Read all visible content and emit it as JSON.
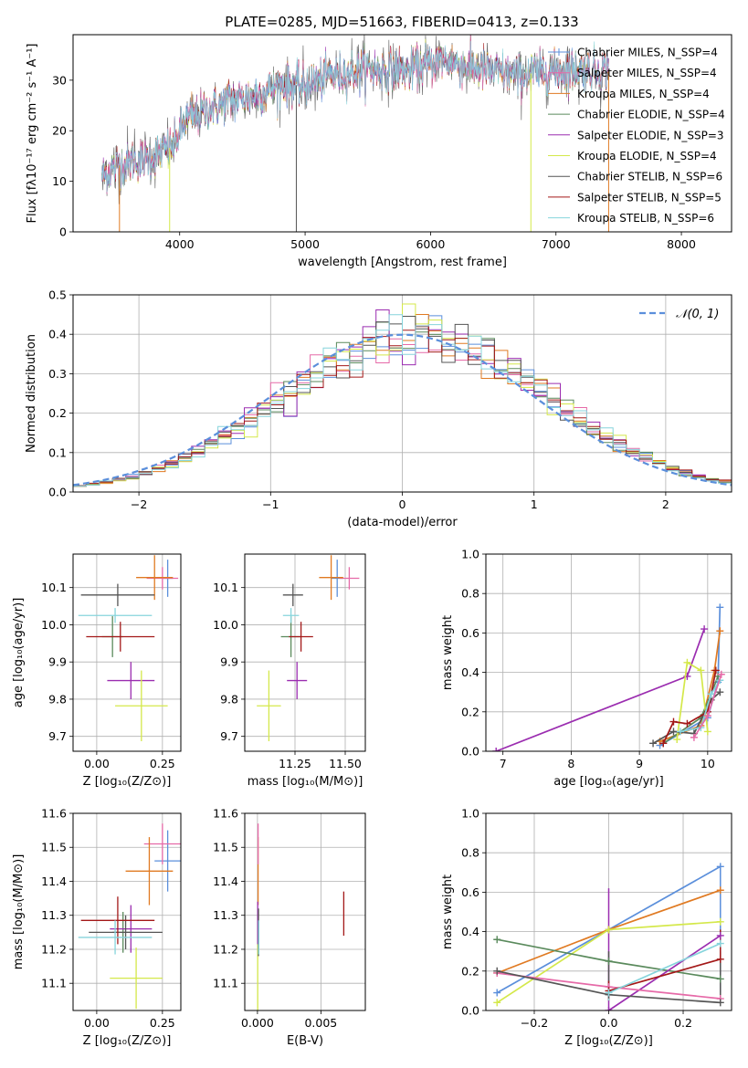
{
  "figure": {
    "title": "PLATE=0285, MJD=51663, FIBERID=0413, z=0.133"
  },
  "colors": {
    "chabrier_miles": "#5b8fdb",
    "salpeter_miles": "#e66aa8",
    "kroupa_miles": "#e07a22",
    "chabrier_elodie": "#5a8a5c",
    "salpeter_elodie": "#9b2db0",
    "kroupa_elodie": "#d4e84a",
    "chabrier_stelib": "#555555",
    "salpeter_stelib": "#a31818",
    "kroupa_stelib": "#86d4dc",
    "normal": "#5b8fdb",
    "grid": "#b0b0b0"
  },
  "chart_data": [
    {
      "id": "spectrum",
      "type": "line",
      "xlabel": "wavelength [Angstrom, rest frame]",
      "ylabel": "Flux [fλ10⁻¹⁷ erg cm⁻² s⁻¹ A⁻¹]",
      "xlim": [
        3150,
        8400
      ],
      "ylim": [
        0,
        39
      ],
      "xticks": [
        "4000",
        "5000",
        "6000",
        "7000",
        "8000"
      ],
      "yticks": [
        "0",
        "10",
        "20",
        "30"
      ],
      "legend": [
        {
          "key": "chabrier_miles",
          "label": "Chabrier MILES, N_SSP=4"
        },
        {
          "key": "salpeter_miles",
          "label": "Salpeter MILES, N_SSP=4"
        },
        {
          "key": "kroupa_miles",
          "label": "Kroupa MILES, N_SSP=4"
        },
        {
          "key": "chabrier_elodie",
          "label": "Chabrier ELODIE, N_SSP=4"
        },
        {
          "key": "salpeter_elodie",
          "label": "Salpeter ELODIE, N_SSP=3"
        },
        {
          "key": "kroupa_elodie",
          "label": "Kroupa ELODIE, N_SSP=4"
        },
        {
          "key": "chabrier_stelib",
          "label": "Chabrier STELIB, N_SSP=6"
        },
        {
          "key": "salpeter_stelib",
          "label": "Salpeter STELIB, N_SSP=5"
        },
        {
          "key": "kroupa_stelib",
          "label": "Kroupa STELIB, N_SSP=6"
        }
      ],
      "continuum": {
        "x": [
          3380,
          3500,
          3650,
          3800,
          3950,
          4050,
          4200,
          4400,
          4600,
          4800,
          5000,
          5200,
          5500,
          5800,
          6100,
          6400,
          6700,
          7000,
          7200,
          7420
        ],
        "y": [
          11,
          13,
          14,
          15,
          17,
          22,
          24,
          26,
          27,
          29,
          29,
          31,
          32,
          32,
          34,
          32,
          31,
          32,
          32,
          32
        ]
      },
      "spikes": [
        {
          "x": 3520,
          "y": 0
        },
        {
          "x": 3920,
          "y": 0
        },
        {
          "x": 4930,
          "y": 0
        },
        {
          "x": 6800,
          "y": 0
        },
        {
          "x": 7420,
          "y": 0
        }
      ]
    },
    {
      "id": "residuals",
      "type": "bar",
      "xlabel": "(data-model)/error",
      "ylabel": "Normed distribution",
      "xlim": [
        -2.5,
        2.5
      ],
      "ylim": [
        0,
        0.5
      ],
      "xticks": [
        "−2",
        "−1",
        "0",
        "1",
        "2"
      ],
      "yticks": [
        "0.0",
        "0.1",
        "0.2",
        "0.3",
        "0.4",
        "0.5"
      ],
      "bin_width": 0.1,
      "legend": [
        {
          "key": "normal",
          "label": "𝒩(0, 1)"
        }
      ]
    },
    {
      "id": "age_vs_Z",
      "type": "scatter",
      "xlabel": "Z [log₁₀(Z/Z⊙)]",
      "ylabel": "age  [log₁₀(age/yr)]",
      "xlim": [
        -0.09,
        0.32
      ],
      "ylim": [
        9.66,
        10.19
      ],
      "xticks": [
        "0.00",
        "0.25"
      ],
      "yticks": [
        "9.7",
        "9.8",
        "9.9",
        "10.0",
        "10.1"
      ],
      "points": [
        {
          "key": "chabrier_miles",
          "x": 0.27,
          "y": 10.125,
          "xerr": 0.02,
          "yerr": 0.05
        },
        {
          "key": "salpeter_miles",
          "x": 0.25,
          "y": 10.125,
          "xerr": 0.06,
          "yerr": 0.03
        },
        {
          "key": "kroupa_miles",
          "x": 0.22,
          "y": 10.127,
          "xerr": 0.07,
          "yerr": 0.06
        },
        {
          "key": "chabrier_elodie",
          "x": 0.06,
          "y": 9.968,
          "xerr": 0.04,
          "yerr": 0.055
        },
        {
          "key": "salpeter_elodie",
          "x": 0.13,
          "y": 9.85,
          "xerr": 0.09,
          "yerr": 0.05
        },
        {
          "key": "kroupa_elodie",
          "x": 0.17,
          "y": 9.782,
          "xerr": 0.1,
          "yerr": 0.095
        },
        {
          "key": "chabrier_stelib",
          "x": 0.08,
          "y": 10.08,
          "xerr": 0.14,
          "yerr": 0.03
        },
        {
          "key": "salpeter_stelib",
          "x": 0.09,
          "y": 9.968,
          "xerr": 0.13,
          "yerr": 0.04
        },
        {
          "key": "kroupa_stelib",
          "x": 0.07,
          "y": 10.025,
          "xerr": 0.14,
          "yerr": 0.02
        }
      ]
    },
    {
      "id": "age_vs_mass",
      "type": "scatter",
      "xlabel": "mass [log₁₀(M/M⊙)]",
      "ylabel": "",
      "xlim": [
        11.0,
        11.6
      ],
      "ylim": [
        9.66,
        10.19
      ],
      "xticks": [
        "11.25",
        "11.50"
      ],
      "yticks": [
        "9.7",
        "9.8",
        "9.9",
        "10.0",
        "10.1"
      ],
      "points": [
        {
          "key": "chabrier_miles",
          "x": 11.46,
          "y": 10.125,
          "xerr": 0.03,
          "yerr": 0.05
        },
        {
          "key": "salpeter_miles",
          "x": 11.52,
          "y": 10.125,
          "xerr": 0.05,
          "yerr": 0.03
        },
        {
          "key": "kroupa_miles",
          "x": 11.43,
          "y": 10.127,
          "xerr": 0.06,
          "yerr": 0.06
        },
        {
          "key": "chabrier_elodie",
          "x": 11.23,
          "y": 9.968,
          "xerr": 0.05,
          "yerr": 0.055
        },
        {
          "key": "salpeter_elodie",
          "x": 11.26,
          "y": 9.85,
          "xerr": 0.05,
          "yerr": 0.05
        },
        {
          "key": "kroupa_elodie",
          "x": 11.12,
          "y": 9.782,
          "xerr": 0.06,
          "yerr": 0.095
        },
        {
          "key": "chabrier_stelib",
          "x": 11.24,
          "y": 10.08,
          "xerr": 0.05,
          "yerr": 0.03
        },
        {
          "key": "salpeter_stelib",
          "x": 11.28,
          "y": 9.968,
          "xerr": 0.06,
          "yerr": 0.04
        },
        {
          "key": "kroupa_stelib",
          "x": 11.23,
          "y": 10.025,
          "xerr": 0.04,
          "yerr": 0.02
        }
      ]
    },
    {
      "id": "weight_vs_age",
      "type": "line",
      "xlabel": "age  [log₁₀(age/yr)]",
      "ylabel": "mass weight",
      "xlim": [
        6.75,
        10.35
      ],
      "ylim": [
        0,
        1.0
      ],
      "xticks": [
        "7",
        "8",
        "9",
        "10"
      ],
      "yticks": [
        "0.0",
        "0.2",
        "0.4",
        "0.6",
        "0.8",
        "1.0"
      ],
      "series": [
        {
          "key": "salpeter_elodie",
          "x": [
            6.9,
            9.7,
            9.95
          ],
          "y": [
            0.0,
            0.38,
            0.62
          ]
        },
        {
          "key": "chabrier_miles",
          "x": [
            9.3,
            10.0,
            10.15,
            10.18
          ],
          "y": [
            0.03,
            0.17,
            0.35,
            0.73
          ]
        },
        {
          "key": "kroupa_miles",
          "x": [
            9.3,
            9.9,
            10.1,
            10.18
          ],
          "y": [
            0.05,
            0.13,
            0.41,
            0.61
          ]
        },
        {
          "key": "chabrier_elodie",
          "x": [
            9.35,
            9.9,
            10.05,
            10.15
          ],
          "y": [
            0.04,
            0.17,
            0.29,
            0.38
          ]
        },
        {
          "key": "kroupa_elodie",
          "x": [
            9.55,
            9.7,
            9.9,
            10.0
          ],
          "y": [
            0.06,
            0.45,
            0.41,
            0.1
          ]
        },
        {
          "key": "chabrier_stelib",
          "x": [
            9.2,
            9.5,
            9.8,
            10.05,
            10.18
          ],
          "y": [
            0.04,
            0.1,
            0.09,
            0.26,
            0.3
          ]
        },
        {
          "key": "salpeter_stelib",
          "x": [
            9.35,
            9.5,
            9.7,
            10.0,
            10.12
          ],
          "y": [
            0.04,
            0.15,
            0.14,
            0.2,
            0.41
          ]
        },
        {
          "key": "kroupa_stelib",
          "x": [
            9.6,
            9.9,
            10.05,
            10.18
          ],
          "y": [
            0.1,
            0.12,
            0.29,
            0.36
          ]
        },
        {
          "key": "salpeter_miles",
          "x": [
            9.8,
            10.0,
            10.2
          ],
          "y": [
            0.07,
            0.18,
            0.39
          ]
        }
      ]
    },
    {
      "id": "mass_vs_Z",
      "type": "scatter",
      "xlabel": "Z [log₁₀(Z/Z⊙)]",
      "ylabel": "mass [log₁₀(M/M⊙)]",
      "xlim": [
        -0.09,
        0.32
      ],
      "ylim": [
        11.02,
        11.6
      ],
      "xticks": [
        "0.00",
        "0.25"
      ],
      "yticks": [
        "11.1",
        "11.2",
        "11.3",
        "11.4",
        "11.5",
        "11.6"
      ],
      "points": [
        {
          "key": "chabrier_miles",
          "x": 0.27,
          "y": 11.46,
          "xerr": 0.05,
          "yerr": 0.09
        },
        {
          "key": "salpeter_miles",
          "x": 0.25,
          "y": 11.51,
          "xerr": 0.07,
          "yerr": 0.06
        },
        {
          "key": "kroupa_miles",
          "x": 0.2,
          "y": 11.43,
          "xerr": 0.09,
          "yerr": 0.1
        },
        {
          "key": "chabrier_elodie",
          "x": 0.1,
          "y": 11.25,
          "xerr": 0.04,
          "yerr": 0.06
        },
        {
          "key": "salpeter_elodie",
          "x": 0.13,
          "y": 11.26,
          "xerr": 0.08,
          "yerr": 0.07
        },
        {
          "key": "kroupa_elodie",
          "x": 0.15,
          "y": 11.115,
          "xerr": 0.1,
          "yerr": 0.09
        },
        {
          "key": "chabrier_stelib",
          "x": 0.11,
          "y": 11.25,
          "xerr": 0.14,
          "yerr": 0.05
        },
        {
          "key": "salpeter_stelib",
          "x": 0.08,
          "y": 11.285,
          "xerr": 0.14,
          "yerr": 0.07
        },
        {
          "key": "kroupa_stelib",
          "x": 0.07,
          "y": 11.235,
          "xerr": 0.14,
          "yerr": 0.05
        }
      ]
    },
    {
      "id": "mass_vs_ebv",
      "type": "scatter",
      "xlabel": "E(B-V)",
      "ylabel": "",
      "xlim": [
        -0.001,
        0.0085
      ],
      "ylim": [
        11.02,
        11.6
      ],
      "xticks": [
        "0.000",
        "0.005"
      ],
      "yticks": [
        "11.1",
        "11.2",
        "11.3",
        "11.4",
        "11.5",
        "11.6"
      ],
      "points": [
        {
          "key": "salpeter_stelib",
          "x": 0.0068,
          "y": 11.305,
          "xerr": 0,
          "yerr": 0.065
        },
        {
          "key": "kroupa_miles",
          "x": 5e-05,
          "y": 11.43,
          "xerr": 0,
          "yerr": 0.1
        },
        {
          "key": "salpeter_miles",
          "x": 5e-05,
          "y": 11.51,
          "xerr": 0,
          "yerr": 0.06
        },
        {
          "key": "salpeter_elodie",
          "x": 2e-05,
          "y": 11.26,
          "xerr": 0,
          "yerr": 0.08
        },
        {
          "key": "kroupa_elodie",
          "x": 2e-05,
          "y": 11.115,
          "xerr": 0,
          "yerr": 0.1
        },
        {
          "key": "chabrier_stelib",
          "x": 8e-05,
          "y": 11.25,
          "xerr": 0,
          "yerr": 0.07
        },
        {
          "key": "kroupa_stelib",
          "x": 0.0001,
          "y": 11.235,
          "xerr": 0,
          "yerr": 0.05
        }
      ]
    },
    {
      "id": "weight_vs_Z",
      "type": "line",
      "xlabel": "Z [log₁₀(Z/Z⊙)]",
      "ylabel": "mass weight",
      "xlim": [
        -0.33,
        0.33
      ],
      "ylim": [
        0,
        1.0
      ],
      "xticks": [
        "−0.2",
        "0.0",
        "0.2"
      ],
      "yticks": [
        "0.0",
        "0.2",
        "0.4",
        "0.6",
        "0.8",
        "1.0"
      ],
      "series": [
        {
          "key": "chabrier_miles",
          "x": [
            -0.3,
            0.0,
            0.3
          ],
          "y": [
            0.09,
            0.41,
            0.73
          ]
        },
        {
          "key": "kroupa_miles",
          "x": [
            -0.3,
            0.0,
            0.3
          ],
          "y": [
            0.19,
            0.41,
            0.61
          ]
        },
        {
          "key": "kroupa_elodie",
          "x": [
            -0.3,
            0.0,
            0.3
          ],
          "y": [
            0.04,
            0.41,
            0.45
          ]
        },
        {
          "key": "chabrier_elodie",
          "x": [
            -0.3,
            0.0,
            0.3
          ],
          "y": [
            0.36,
            0.25,
            0.16
          ]
        },
        {
          "key": "salpeter_elodie",
          "x": [
            0.0,
            0.3
          ],
          "y": [
            0.0,
            0.38
          ]
        },
        {
          "key": "salpeter_miles",
          "x": [
            -0.3,
            0.0,
            0.3
          ],
          "y": [
            0.19,
            0.12,
            0.06
          ]
        },
        {
          "key": "chabrier_stelib",
          "x": [
            -0.3,
            0.0,
            0.3
          ],
          "y": [
            0.2,
            0.08,
            0.04
          ]
        },
        {
          "key": "salpeter_stelib",
          "x": [
            0.0,
            0.3
          ],
          "y": [
            0.1,
            0.26
          ]
        },
        {
          "key": "kroupa_stelib",
          "x": [
            0.0,
            0.3
          ],
          "y": [
            0.09,
            0.34
          ]
        }
      ],
      "verticals": [
        {
          "key": "salpeter_elodie",
          "x": 0.0,
          "y": [
            0.0,
            0.62
          ]
        },
        {
          "key": "chabrier_stelib",
          "x": 0.0,
          "y": [
            0.08,
            0.3
          ]
        },
        {
          "key": "salpeter_stelib",
          "x": 0.0,
          "y": [
            0.05,
            0.15
          ]
        },
        {
          "key": "kroupa_stelib",
          "x": 0.0,
          "y": [
            0.05,
            0.11
          ]
        },
        {
          "key": "chabrier_miles",
          "x": 0.3,
          "y": [
            0.09,
            0.73
          ]
        },
        {
          "key": "chabrier_stelib",
          "x": 0.3,
          "y": [
            0.04,
            0.3
          ]
        },
        {
          "key": "salpeter_stelib",
          "x": 0.3,
          "y": [
            0.26,
            0.41
          ]
        }
      ]
    }
  ]
}
